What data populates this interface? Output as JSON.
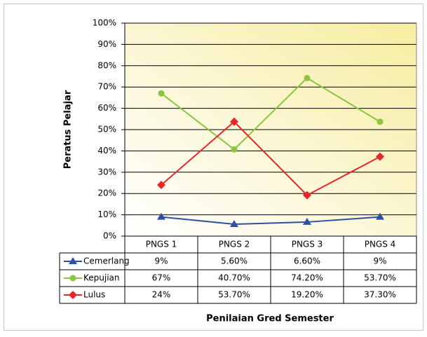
{
  "chart_data": {
    "type": "line",
    "x_label": "Penilaian Gred Semester",
    "y_label": "Peratus Pelajar",
    "categories": [
      "PNGS 1",
      "PNGS 2",
      "PNGS 3",
      "PNGS 4"
    ],
    "series": [
      {
        "name": "Cemerlang",
        "color": "#2e4fa3",
        "marker": "triangle",
        "values": [
          9,
          5.6,
          6.6,
          9
        ],
        "value_labels": [
          "9%",
          "5.60%",
          "6.60%",
          "9%"
        ]
      },
      {
        "name": "Kepujian",
        "color": "#8cc63e",
        "marker": "circle",
        "values": [
          67,
          40.7,
          74.2,
          53.7
        ],
        "value_labels": [
          "67%",
          "40.70%",
          "74.20%",
          "53.70%"
        ]
      },
      {
        "name": "Lulus",
        "color": "#e8262a",
        "marker": "diamond",
        "values": [
          24,
          53.7,
          19.2,
          37.3
        ],
        "value_labels": [
          "24%",
          "53.70%",
          "19.20%",
          "37.30%"
        ]
      }
    ],
    "ylim": [
      0,
      100
    ],
    "yticks": [
      {
        "value": 0,
        "label": "0%"
      },
      {
        "value": 10,
        "label": "10%"
      },
      {
        "value": 20,
        "label": "20%"
      },
      {
        "value": 30,
        "label": "30%"
      },
      {
        "value": 40,
        "label": "40%"
      },
      {
        "value": 50,
        "label": "50%"
      },
      {
        "value": 60,
        "label": "60%"
      },
      {
        "value": 70,
        "label": "70%"
      },
      {
        "value": 80,
        "label": "80%"
      },
      {
        "value": 90,
        "label": "90%"
      },
      {
        "value": 100,
        "label": "100%"
      }
    ],
    "grid": true
  }
}
